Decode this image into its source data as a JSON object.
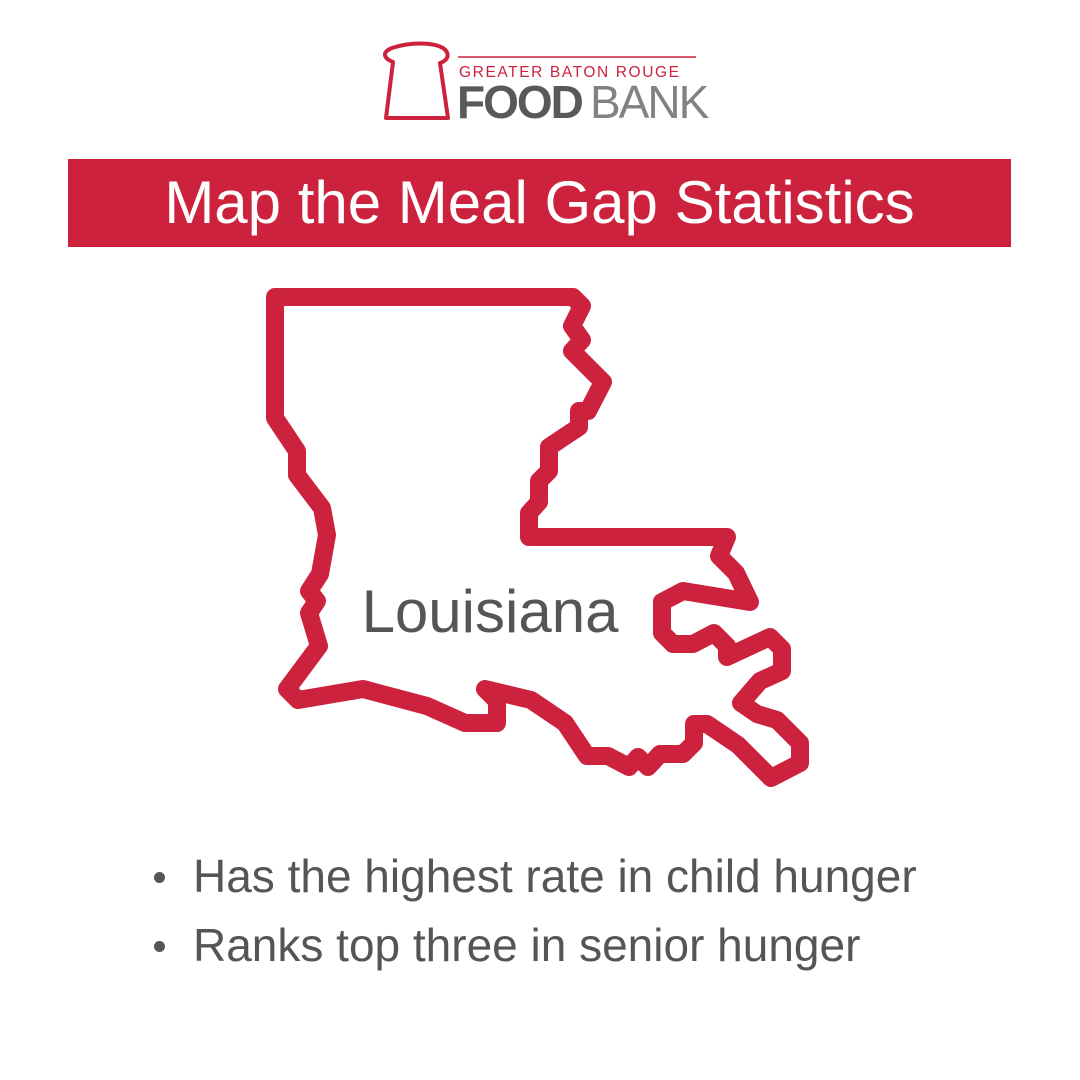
{
  "logo": {
    "tagline": "GREATER BATON ROUGE",
    "name_bold": "FOOD",
    "name_light": "BANK"
  },
  "title": "Map the Meal Gap Statistics",
  "map": {
    "label": "Louisiana"
  },
  "bullets": [
    "Has the highest rate in child hunger",
    "Ranks top three in senior hunger"
  ]
}
